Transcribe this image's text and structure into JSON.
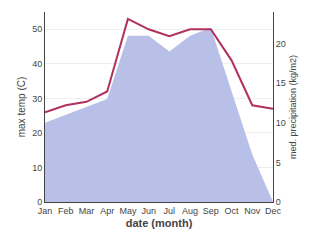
{
  "chart_data": {
    "type": "line",
    "categories": [
      "Jan",
      "Feb",
      "Mar",
      "Apr",
      "May",
      "Jun",
      "Jul",
      "Aug",
      "Sep",
      "Oct",
      "Nov",
      "Dec"
    ],
    "series": [
      {
        "type": "area",
        "axis": "y2",
        "color": "#b8c0e8",
        "values": [
          10,
          11,
          12,
          13,
          21,
          21,
          19,
          21,
          22,
          14,
          6,
          0
        ]
      },
      {
        "type": "line",
        "color": "#b03060",
        "values": [
          26,
          28,
          29,
          32,
          53,
          50,
          48,
          50,
          50,
          41,
          28,
          27
        ]
      }
    ],
    "xlabel": "date (month)",
    "ylabel": "max temp (C)",
    "y2label": "med. precipitation (kg/m2)",
    "ylim": [
      0,
      55
    ],
    "yticks": [
      0,
      10,
      20,
      30,
      40,
      50
    ],
    "y2lim": [
      0,
      24
    ],
    "y2ticks": [
      0,
      5,
      10,
      15,
      20
    ],
    "grid": true
  }
}
